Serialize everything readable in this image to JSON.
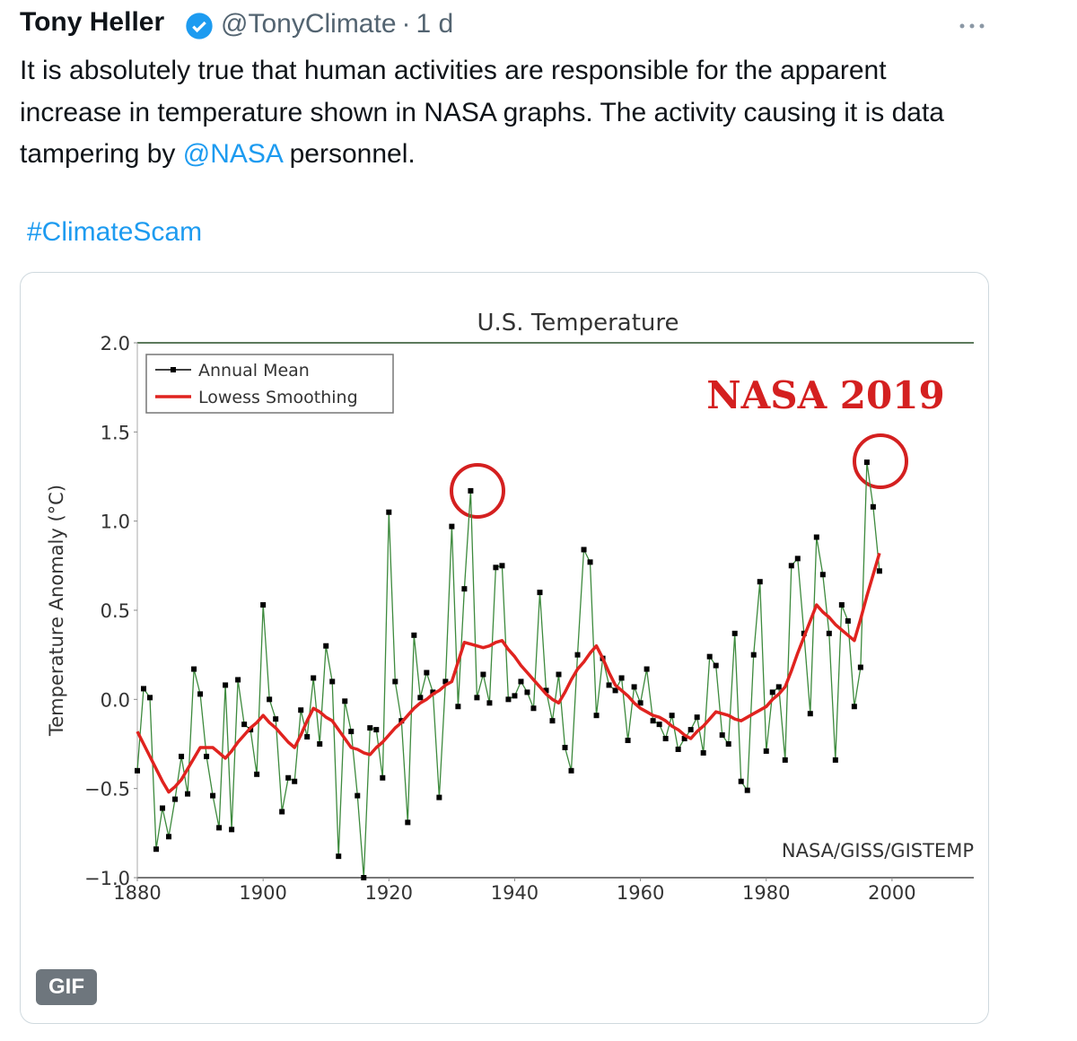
{
  "tweet": {
    "author": {
      "name": "Tony Heller",
      "handle": "@TonyClimate",
      "separator": "·",
      "time": "1 d"
    },
    "text": [
      "It is absolutely true that human activities are responsible for the apparent increase in temperature shown in NASA graphs. The activity causing it is data tampering by",
      "@NASA",
      "personnel."
    ],
    "hashtag": "#ClimateScam",
    "media_badge": "GIF"
  },
  "chart_data": {
    "type": "line",
    "title": "U.S. Temperature",
    "y_label": "Temperature Anomaly (°C)",
    "annotations": [
      "NASA 2019",
      "NASA/GISS/GISTEMP"
    ],
    "x": [
      1880,
      1881,
      1882,
      1883,
      1884,
      1885,
      1886,
      1887,
      1888,
      1889,
      1890,
      1891,
      1892,
      1893,
      1894,
      1895,
      1896,
      1897,
      1898,
      1899,
      1900,
      1901,
      1902,
      1903,
      1904,
      1905,
      1906,
      1907,
      1908,
      1909,
      1910,
      1911,
      1912,
      1913,
      1914,
      1915,
      1916,
      1917,
      1918,
      1919,
      1920,
      1921,
      1922,
      1923,
      1924,
      1925,
      1926,
      1927,
      1928,
      1929,
      1930,
      1931,
      1932,
      1933,
      1934,
      1935,
      1936,
      1937,
      1938,
      1939,
      1940,
      1941,
      1942,
      1943,
      1944,
      1945,
      1946,
      1947,
      1948,
      1949,
      1950,
      1951,
      1952,
      1953,
      1954,
      1955,
      1956,
      1957,
      1958,
      1959,
      1960,
      1961,
      1962,
      1963,
      1964,
      1965,
      1966,
      1967,
      1968,
      1969,
      1970,
      1971,
      1972,
      1973,
      1974,
      1975,
      1976,
      1977,
      1978,
      1979,
      1980,
      1981,
      1982,
      1983,
      1984,
      1985,
      1986,
      1987,
      1988,
      1989,
      1990,
      1991,
      1992,
      1993,
      1994,
      1995,
      1996,
      1997,
      1998
    ],
    "series": [
      {
        "name": "Annual Mean",
        "color": "#3d8a3d",
        "marker_color": "#000000",
        "values": [
          -0.4,
          0.06,
          0.01,
          -0.84,
          -0.61,
          -0.77,
          -0.56,
          -0.32,
          -0.53,
          0.17,
          0.03,
          -0.32,
          -0.54,
          -0.72,
          0.08,
          -0.73,
          0.11,
          -0.14,
          -0.17,
          -0.42,
          0.53,
          0.0,
          -0.11,
          -0.63,
          -0.44,
          -0.46,
          -0.06,
          -0.21,
          0.12,
          -0.25,
          0.3,
          0.1,
          -0.88,
          -0.01,
          -0.18,
          -0.54,
          -1.0,
          -0.16,
          -0.17,
          -0.44,
          1.05,
          0.1,
          -0.12,
          -0.69,
          0.36,
          0.01,
          0.15,
          0.04,
          -0.55,
          0.1,
          0.97,
          -0.04,
          0.62,
          1.17,
          0.01,
          0.14,
          -0.02,
          0.74,
          0.75,
          0.0,
          0.02,
          0.1,
          0.04,
          -0.05,
          0.6,
          0.05,
          -0.12,
          0.14,
          -0.27,
          -0.4,
          0.25,
          0.84,
          0.77,
          -0.09,
          0.23,
          0.08,
          0.05,
          0.12,
          -0.23,
          0.07,
          -0.02,
          0.17,
          -0.12,
          -0.14,
          -0.22,
          -0.09,
          -0.28,
          -0.22,
          -0.17,
          -0.1,
          -0.3,
          0.24,
          0.19,
          -0.2,
          -0.25,
          0.37,
          -0.46,
          -0.51,
          0.25,
          0.66,
          -0.29,
          0.04,
          0.07,
          -0.34,
          0.75,
          0.79,
          0.37,
          -0.08,
          0.91,
          0.7,
          0.37,
          -0.34,
          0.53,
          0.44,
          -0.04,
          0.18,
          1.33,
          1.08,
          0.72
        ]
      },
      {
        "name": "Lowess Smoothing",
        "color": "#e0231f",
        "values": [
          -0.18,
          -0.25,
          -0.32,
          -0.39,
          -0.46,
          -0.52,
          -0.49,
          -0.45,
          -0.39,
          -0.33,
          -0.27,
          -0.27,
          -0.27,
          -0.3,
          -0.33,
          -0.29,
          -0.24,
          -0.2,
          -0.16,
          -0.13,
          -0.09,
          -0.13,
          -0.16,
          -0.2,
          -0.24,
          -0.27,
          -0.2,
          -0.12,
          -0.05,
          -0.07,
          -0.1,
          -0.12,
          -0.17,
          -0.22,
          -0.27,
          -0.28,
          -0.3,
          -0.31,
          -0.27,
          -0.24,
          -0.2,
          -0.16,
          -0.13,
          -0.09,
          -0.05,
          -0.02,
          0.0,
          0.03,
          0.05,
          0.08,
          0.1,
          0.21,
          0.32,
          0.31,
          0.3,
          0.29,
          0.3,
          0.32,
          0.33,
          0.28,
          0.24,
          0.19,
          0.15,
          0.11,
          0.07,
          0.03,
          0.0,
          -0.02,
          0.04,
          0.11,
          0.17,
          0.21,
          0.26,
          0.3,
          0.23,
          0.15,
          0.08,
          0.05,
          0.02,
          -0.02,
          -0.05,
          -0.07,
          -0.09,
          -0.1,
          -0.12,
          -0.15,
          -0.17,
          -0.2,
          -0.22,
          -0.18,
          -0.15,
          -0.11,
          -0.07,
          -0.08,
          -0.09,
          -0.11,
          -0.12,
          -0.1,
          -0.08,
          -0.06,
          -0.04,
          0.0,
          0.03,
          0.07,
          0.16,
          0.26,
          0.35,
          0.44,
          0.53,
          0.49,
          0.46,
          0.42,
          0.39,
          0.36,
          0.33,
          0.45,
          0.58,
          0.7,
          0.82
        ]
      }
    ],
    "xlim": [
      1880,
      2013
    ],
    "xticks": [
      1880,
      1900,
      1920,
      1940,
      1960,
      1980,
      2000
    ],
    "ylim": [
      -1,
      2
    ],
    "yticks": [
      {
        "value": -1,
        "label": "−1.0"
      },
      {
        "value": -0.5,
        "label": "−0.5"
      },
      {
        "value": 0,
        "label": "0.0"
      },
      {
        "value": 0.5,
        "label": "0.5"
      },
      {
        "value": 1,
        "label": "1.0"
      },
      {
        "value": 1.5,
        "label": "1.5"
      },
      {
        "value": 2,
        "label": "2.0"
      }
    ],
    "grid": false,
    "legend": "upper left"
  }
}
